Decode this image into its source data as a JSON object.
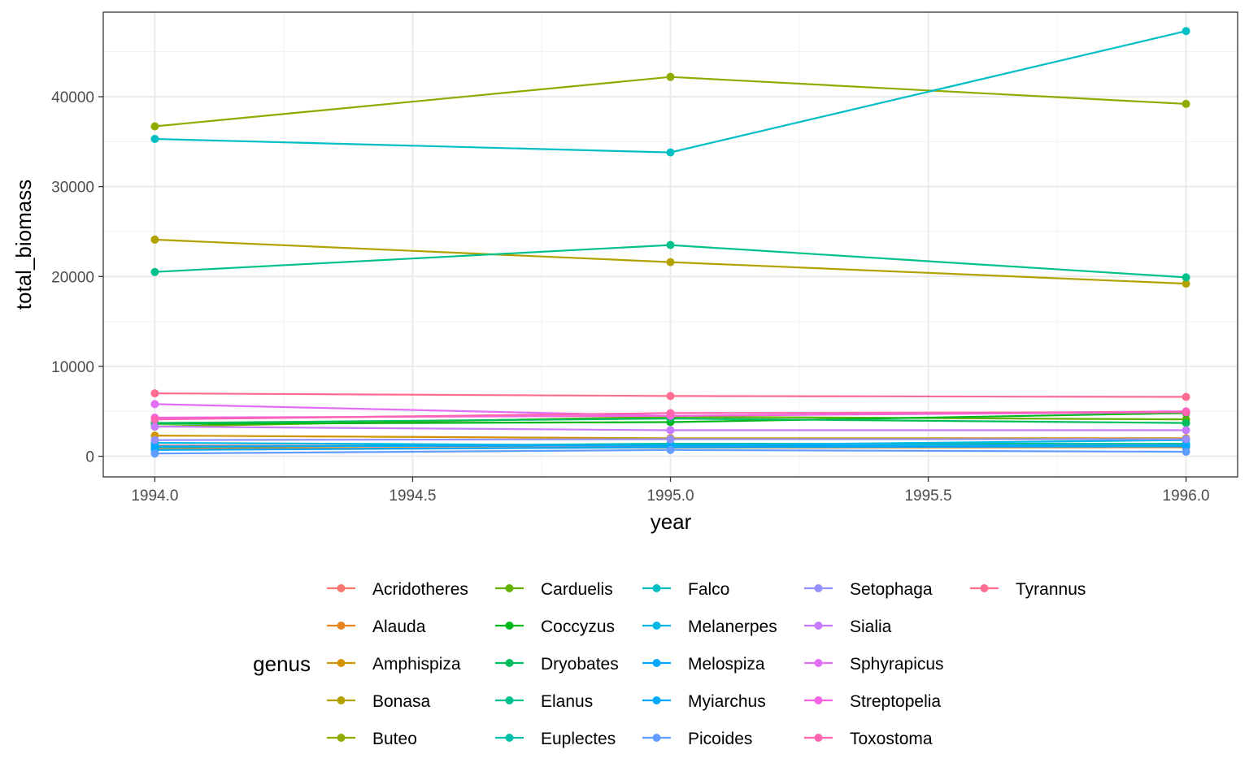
{
  "chart_data": {
    "type": "line",
    "xlabel": "year",
    "ylabel": "total_biomass",
    "xlim": [
      1993.9,
      1996.1
    ],
    "ylim": [
      -2300,
      49400
    ],
    "x_ticks": [
      1994.0,
      1994.5,
      1995.0,
      1995.5,
      1996.0
    ],
    "x_tick_labels": [
      "1994.0",
      "1994.5",
      "1995.0",
      "1995.5",
      "1996.0"
    ],
    "y_ticks": [
      0,
      10000,
      20000,
      30000,
      40000
    ],
    "y_tick_labels": [
      "0",
      "10000",
      "20000",
      "30000",
      "40000"
    ],
    "grid": true,
    "legend_title": "genus",
    "legend_position": "bottom",
    "x": [
      1994,
      1995,
      1996
    ],
    "series": [
      {
        "name": "Acridotheres",
        "color": "#F8766D",
        "values": [
          1200,
          1100,
          1300
        ]
      },
      {
        "name": "Alauda",
        "color": "#E7851E",
        "values": [
          900,
          950,
          1000
        ]
      },
      {
        "name": "Amphispiza",
        "color": "#D09400",
        "values": [
          2300,
          2000,
          2000
        ]
      },
      {
        "name": "Bonasa",
        "color": "#B2A100",
        "values": [
          24100,
          21600,
          19200
        ]
      },
      {
        "name": "Buteo",
        "color": "#8EAB00",
        "values": [
          36700,
          42200,
          39200
        ]
      },
      {
        "name": "Carduelis",
        "color": "#64B200",
        "values": [
          3300,
          4400,
          4100
        ]
      },
      {
        "name": "Coccyzus",
        "color": "#00B81B",
        "values": [
          3600,
          3800,
          4800
        ]
      },
      {
        "name": "Dryobates",
        "color": "#00BD5C",
        "values": [
          3700,
          4200,
          3700
        ]
      },
      {
        "name": "Elanus",
        "color": "#00C08B",
        "values": [
          20500,
          23500,
          19900
        ]
      },
      {
        "name": "Euplectes",
        "color": "#00C1A7",
        "values": [
          1000,
          1400,
          1400
        ]
      },
      {
        "name": "Falco",
        "color": "#00BFC4",
        "values": [
          35300,
          33800,
          47300
        ]
      },
      {
        "name": "Melanerpes",
        "color": "#00B8E5",
        "values": [
          1500,
          1200,
          1800
        ]
      },
      {
        "name": "Melospiza",
        "color": "#00A9FF",
        "values": [
          700,
          1000,
          1100
        ]
      },
      {
        "name": "Myiarchus",
        "color": "#00A9FF",
        "values": [
          1100,
          1200,
          1200
        ]
      },
      {
        "name": "Picoides",
        "color": "#619CFF",
        "values": [
          300,
          700,
          500
        ]
      },
      {
        "name": "Setophaga",
        "color": "#9590FF",
        "values": [
          1800,
          1900,
          1900
        ]
      },
      {
        "name": "Sialia",
        "color": "#C77CFF",
        "values": [
          3300,
          2900,
          2900
        ]
      },
      {
        "name": "Sphyrapicus",
        "color": "#E36EF6",
        "values": [
          5800,
          4500,
          4900
        ]
      },
      {
        "name": "Streptopelia",
        "color": "#F564E3",
        "values": [
          4300,
          4500,
          5000
        ]
      },
      {
        "name": "Toxostoma",
        "color": "#FF64B0",
        "values": [
          4100,
          4800,
          4900
        ]
      },
      {
        "name": "Tyrannus",
        "color": "#FF6C91",
        "values": [
          7000,
          6700,
          6600
        ]
      }
    ]
  }
}
